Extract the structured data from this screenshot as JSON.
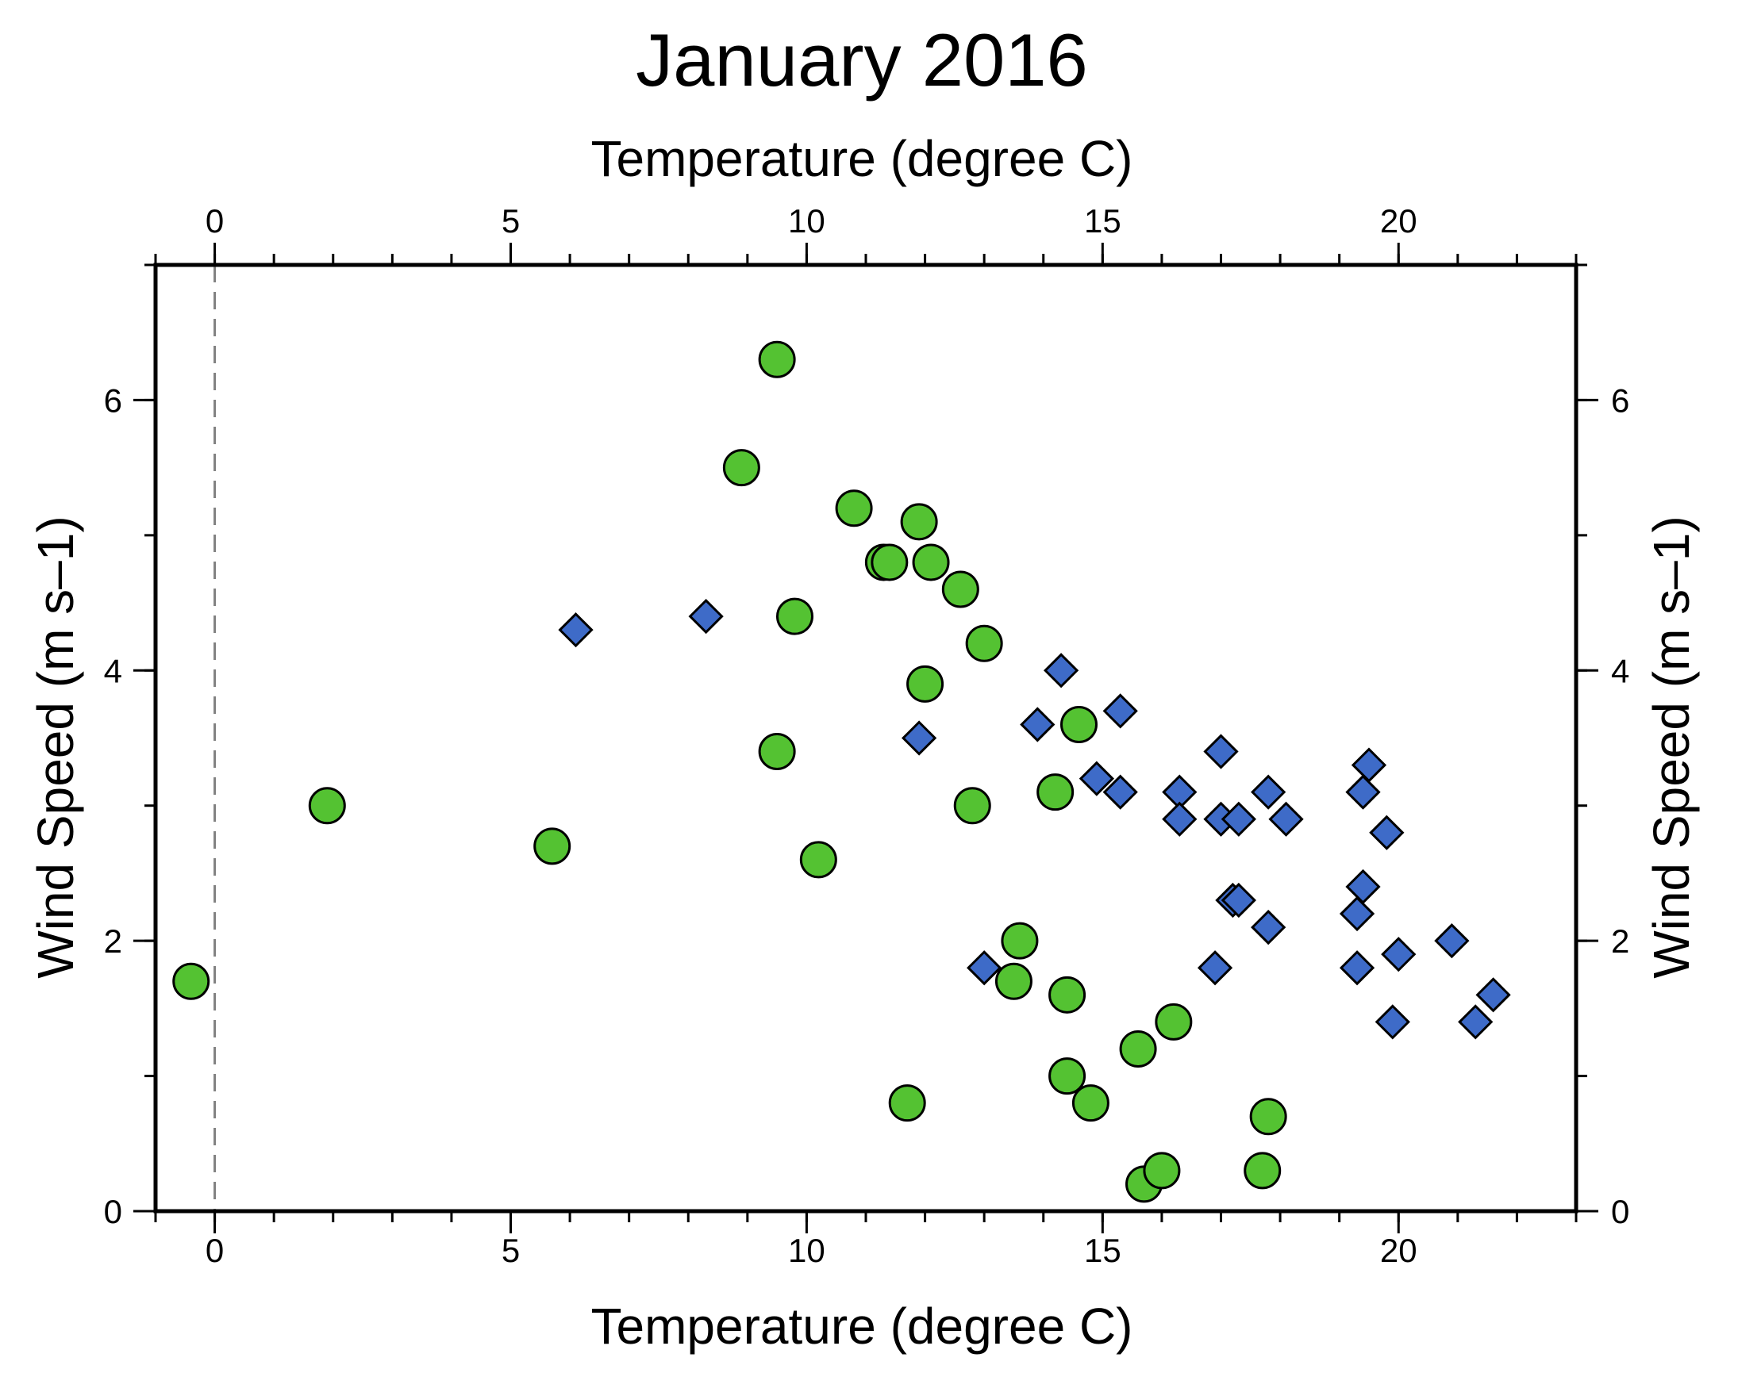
{
  "chart_data": {
    "type": "scatter",
    "title": "January 2016",
    "xlabel": "Temperature (degree C)",
    "xlabel_top": "Temperature (degree C)",
    "ylabel": "Wind Speed (m s–1)",
    "ylabel_right": "Wind Speed (m s–1)",
    "xlim": [
      -1,
      23
    ],
    "ylim": [
      0,
      7
    ],
    "x_ticks": [
      0,
      5,
      10,
      15,
      20
    ],
    "y_ticks": [
      0,
      2,
      4,
      6
    ],
    "x_minor_step": 1,
    "y_minor_step": 1,
    "grid": false,
    "reference_line": {
      "axis": "x",
      "value": 0,
      "style": "dashed",
      "color": "#808080"
    },
    "frame_color": "#000000",
    "series": [
      {
        "marker": "circle",
        "color": "#54c232",
        "points": [
          [
            -0.4,
            1.7
          ],
          [
            1.9,
            3.0
          ],
          [
            5.7,
            2.7
          ],
          [
            8.9,
            5.5
          ],
          [
            9.5,
            6.3
          ],
          [
            9.5,
            3.4
          ],
          [
            9.8,
            4.4
          ],
          [
            10.2,
            2.6
          ],
          [
            10.8,
            5.2
          ],
          [
            11.3,
            4.8
          ],
          [
            11.4,
            4.8
          ],
          [
            11.7,
            0.8
          ],
          [
            11.9,
            5.1
          ],
          [
            12.0,
            3.9
          ],
          [
            12.1,
            4.8
          ],
          [
            12.6,
            4.6
          ],
          [
            12.8,
            3.0
          ],
          [
            13.0,
            4.2
          ],
          [
            13.5,
            1.7
          ],
          [
            13.6,
            2.0
          ],
          [
            14.2,
            3.1
          ],
          [
            14.4,
            1.6
          ],
          [
            14.4,
            1.0
          ],
          [
            14.6,
            3.6
          ],
          [
            14.8,
            0.8
          ],
          [
            15.6,
            1.2
          ],
          [
            15.7,
            0.2
          ],
          [
            16.0,
            0.3
          ],
          [
            16.2,
            1.4
          ],
          [
            17.7,
            0.3
          ],
          [
            17.8,
            0.7
          ]
        ]
      },
      {
        "marker": "diamond",
        "color": "#3e6bc8",
        "points": [
          [
            6.1,
            4.3
          ],
          [
            8.3,
            4.4
          ],
          [
            11.9,
            3.5
          ],
          [
            13.0,
            1.8
          ],
          [
            13.9,
            3.6
          ],
          [
            14.3,
            4.0
          ],
          [
            14.9,
            3.2
          ],
          [
            15.3,
            3.7
          ],
          [
            15.3,
            3.1
          ],
          [
            16.3,
            3.1
          ],
          [
            16.3,
            2.9
          ],
          [
            16.9,
            1.8
          ],
          [
            17.0,
            3.4
          ],
          [
            17.0,
            2.9
          ],
          [
            17.2,
            2.3
          ],
          [
            17.3,
            2.9
          ],
          [
            17.3,
            2.3
          ],
          [
            17.8,
            3.1
          ],
          [
            17.8,
            2.1
          ],
          [
            18.1,
            2.9
          ],
          [
            19.3,
            2.2
          ],
          [
            19.3,
            1.8
          ],
          [
            19.4,
            3.1
          ],
          [
            19.4,
            2.4
          ],
          [
            19.5,
            3.3
          ],
          [
            19.8,
            2.8
          ],
          [
            19.9,
            1.4
          ],
          [
            20.0,
            1.9
          ],
          [
            20.9,
            2.0
          ],
          [
            21.3,
            1.4
          ],
          [
            21.6,
            1.6
          ]
        ]
      }
    ]
  }
}
